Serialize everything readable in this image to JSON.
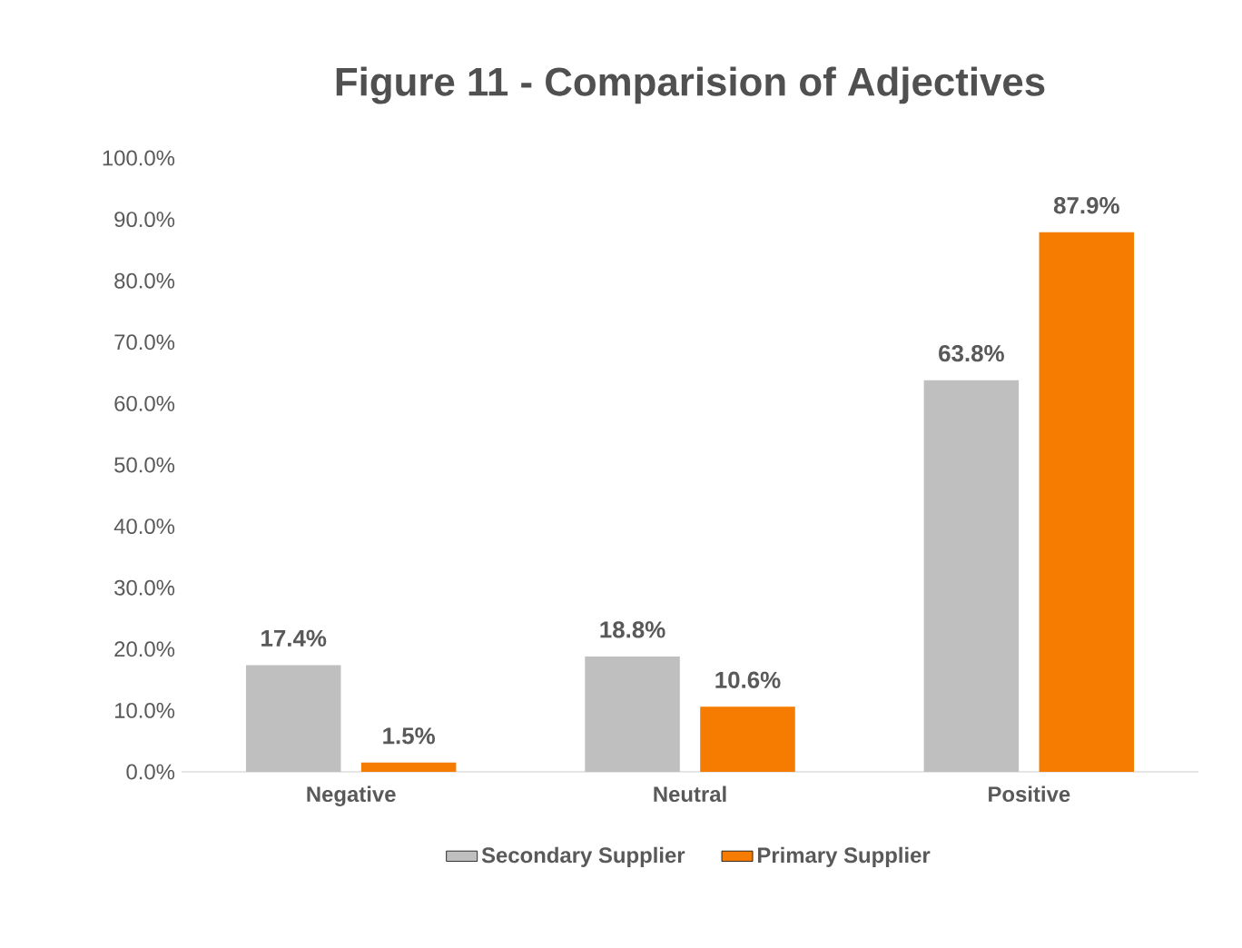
{
  "chart_data": {
    "type": "bar",
    "title": "Figure 11 - Comparision of Adjectives",
    "categories": [
      "Negative",
      "Neutral",
      "Positive"
    ],
    "series": [
      {
        "name": "Secondary Supplier",
        "color": "#bfbfbf",
        "values": [
          17.4,
          18.8,
          63.8
        ],
        "value_labels": [
          "17.4%",
          "18.8%",
          "63.8%"
        ]
      },
      {
        "name": "Primary Supplier",
        "color": "#f57c00",
        "values": [
          1.5,
          10.6,
          87.9
        ],
        "value_labels": [
          "1.5%",
          "10.6%",
          "87.9%"
        ]
      }
    ],
    "ylim": [
      0,
      100
    ],
    "yticks": [
      {
        "value": 0,
        "label": "0.0%"
      },
      {
        "value": 10,
        "label": "10.0%"
      },
      {
        "value": 20,
        "label": "20.0%"
      },
      {
        "value": 30,
        "label": "30.0%"
      },
      {
        "value": 40,
        "label": "40.0%"
      },
      {
        "value": 50,
        "label": "50.0%"
      },
      {
        "value": 60,
        "label": "60.0%"
      },
      {
        "value": 70,
        "label": "70.0%"
      },
      {
        "value": 80,
        "label": "80.0%"
      },
      {
        "value": 90,
        "label": "90.0%"
      },
      {
        "value": 100,
        "label": "100.0%"
      }
    ],
    "grid": false,
    "legend": "bottom"
  }
}
